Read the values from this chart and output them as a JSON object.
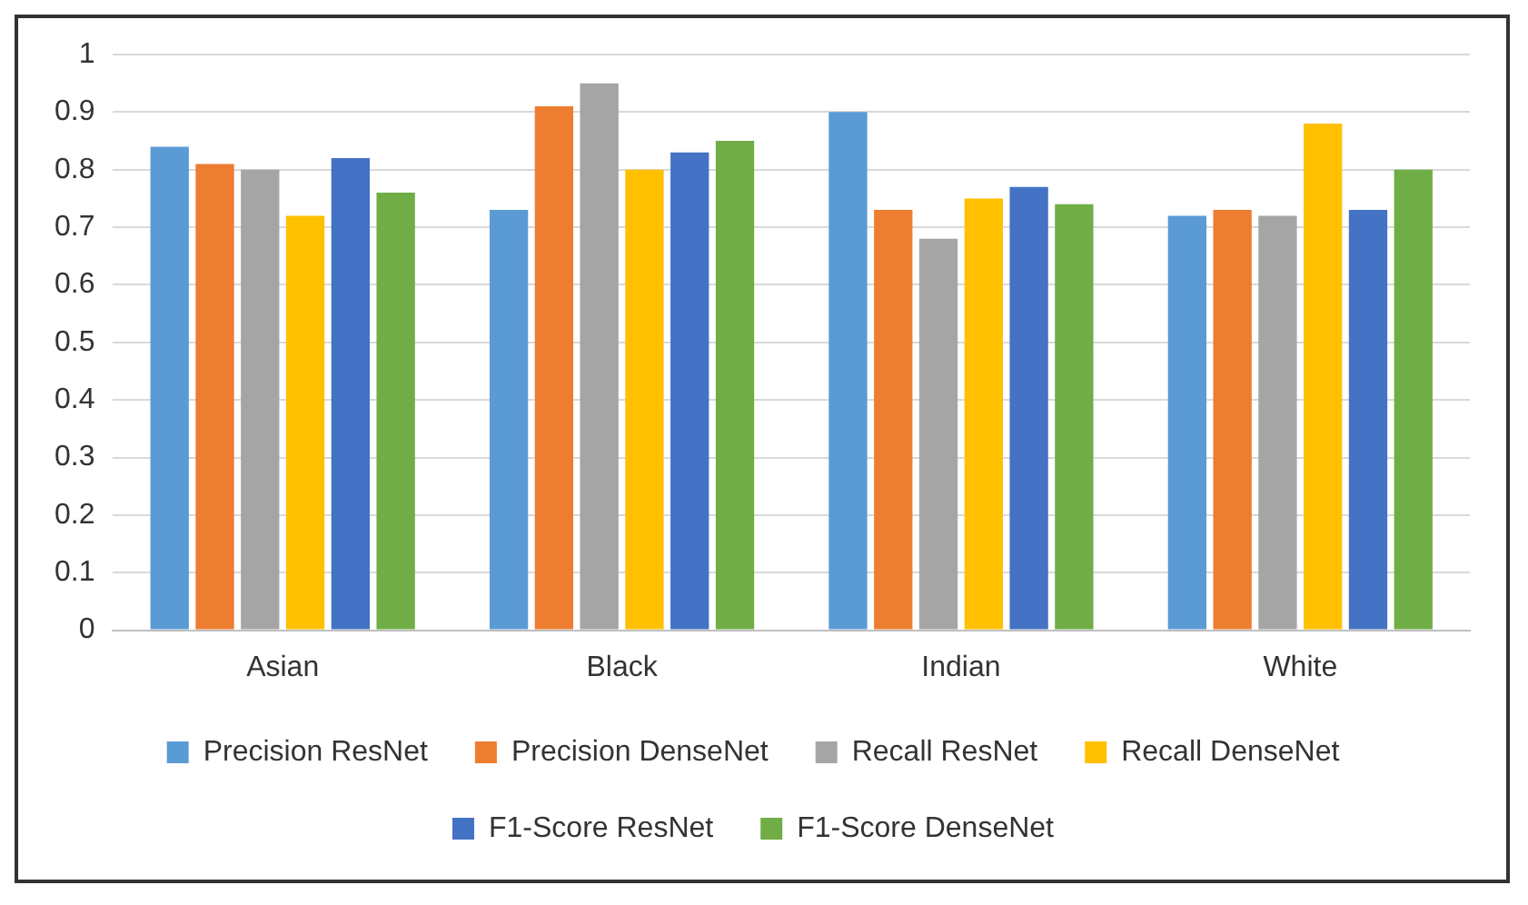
{
  "chart_data": {
    "type": "bar",
    "categories": [
      "Asian",
      "Black",
      "Indian",
      "White"
    ],
    "series": [
      {
        "name": "Precision ResNet",
        "color": "#5b9bd5",
        "values": [
          0.84,
          0.73,
          0.9,
          0.72
        ]
      },
      {
        "name": "Precision DenseNet",
        "color": "#ed7d31",
        "values": [
          0.81,
          0.91,
          0.73,
          0.73
        ]
      },
      {
        "name": "Recall ResNet",
        "color": "#a5a5a5",
        "values": [
          0.8,
          0.95,
          0.68,
          0.72
        ]
      },
      {
        "name": "Recall DenseNet",
        "color": "#ffc000",
        "values": [
          0.72,
          0.8,
          0.75,
          0.88
        ]
      },
      {
        "name": "F1-Score ResNet",
        "color": "#4472c4",
        "values": [
          0.82,
          0.83,
          0.77,
          0.73
        ]
      },
      {
        "name": "F1-Score DenseNet",
        "color": "#70ad47",
        "values": [
          0.76,
          0.85,
          0.74,
          0.8
        ]
      }
    ],
    "ylim": [
      0,
      1
    ],
    "yticks": [
      0,
      0.1,
      0.2,
      0.3,
      0.4,
      0.5,
      0.6,
      0.7,
      0.8,
      0.9,
      1
    ],
    "grid": "y",
    "legend": "bottom"
  }
}
